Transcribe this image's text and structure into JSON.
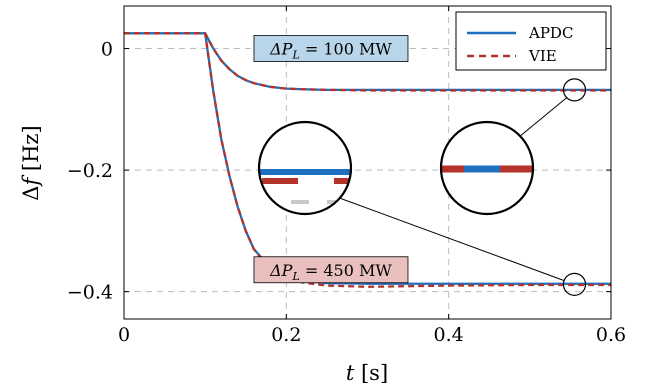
{
  "chart_data": {
    "type": "line",
    "xlabel_var": "t",
    "xlabel_unit": "[s]",
    "ylabel_delta": "Δ",
    "ylabel_var": "f",
    "ylabel_unit": "[Hz]",
    "xlim": [
      0,
      0.6
    ],
    "ylim": [
      -0.445,
      0.07
    ],
    "x_ticks": [
      0,
      0.2,
      0.4,
      0.6
    ],
    "x_tick_labels": [
      "0",
      "0.2",
      "0.4",
      "0.6"
    ],
    "y_ticks": [
      0,
      -0.2,
      -0.4
    ],
    "y_tick_labels": [
      "0",
      "−0.2",
      "−0.4"
    ],
    "grid": true,
    "legend_position": "top-right",
    "series": [
      {
        "name": "APDC",
        "color": "#1f6fbf",
        "style": "solid",
        "curves": [
          {
            "case": "100",
            "x": [
              0,
              0.1,
              0.11,
              0.12,
              0.13,
              0.14,
              0.15,
              0.16,
              0.18,
              0.2,
              0.22,
              0.25,
              0.3,
              0.35,
              0.4,
              0.5,
              0.6
            ],
            "y": [
              0.025,
              0.025,
              0.0,
              -0.02,
              -0.034,
              -0.045,
              -0.052,
              -0.057,
              -0.063,
              -0.066,
              -0.067,
              -0.068,
              -0.068,
              -0.068,
              -0.068,
              -0.068,
              -0.068
            ]
          },
          {
            "case": "450",
            "x": [
              0,
              0.1,
              0.11,
              0.12,
              0.13,
              0.14,
              0.15,
              0.16,
              0.18,
              0.2,
              0.22,
              0.25,
              0.3,
              0.35,
              0.4,
              0.5,
              0.6
            ],
            "y": [
              0.025,
              0.025,
              -0.07,
              -0.15,
              -0.21,
              -0.26,
              -0.3,
              -0.33,
              -0.36,
              -0.375,
              -0.382,
              -0.386,
              -0.387,
              -0.387,
              -0.387,
              -0.387,
              -0.387
            ]
          }
        ]
      },
      {
        "name": "VIE",
        "color": "#b5322a",
        "style": "dashed",
        "curves": [
          {
            "case": "100",
            "x": [
              0,
              0.1,
              0.11,
              0.12,
              0.13,
              0.14,
              0.15,
              0.16,
              0.18,
              0.2,
              0.22,
              0.25,
              0.3,
              0.35,
              0.4,
              0.5,
              0.6
            ],
            "y": [
              0.025,
              0.025,
              0.0,
              -0.02,
              -0.034,
              -0.045,
              -0.052,
              -0.057,
              -0.063,
              -0.066,
              -0.067,
              -0.068,
              -0.069,
              -0.069,
              -0.069,
              -0.069,
              -0.069
            ]
          },
          {
            "case": "450",
            "x": [
              0,
              0.1,
              0.11,
              0.12,
              0.13,
              0.14,
              0.15,
              0.16,
              0.18,
              0.2,
              0.22,
              0.25,
              0.3,
              0.35,
              0.4,
              0.5,
              0.6
            ],
            "y": [
              0.025,
              0.025,
              -0.07,
              -0.15,
              -0.21,
              -0.26,
              -0.3,
              -0.33,
              -0.362,
              -0.378,
              -0.385,
              -0.39,
              -0.392,
              -0.391,
              -0.39,
              -0.389,
              -0.389
            ]
          }
        ]
      }
    ],
    "annotations": [
      {
        "var": "ΔP",
        "sub": "L",
        "text": " = 100 MW",
        "fill": "#b9d5ea",
        "x": 0.255,
        "y": 0.0
      },
      {
        "var": "ΔP",
        "sub": "L",
        "text": " = 450 MW",
        "fill": "#e9c0bd",
        "x": 0.255,
        "y": -0.364
      }
    ],
    "zoom_targets": [
      {
        "x": 0.555,
        "y": -0.068
      },
      {
        "x": 0.555,
        "y": -0.388
      }
    ]
  }
}
